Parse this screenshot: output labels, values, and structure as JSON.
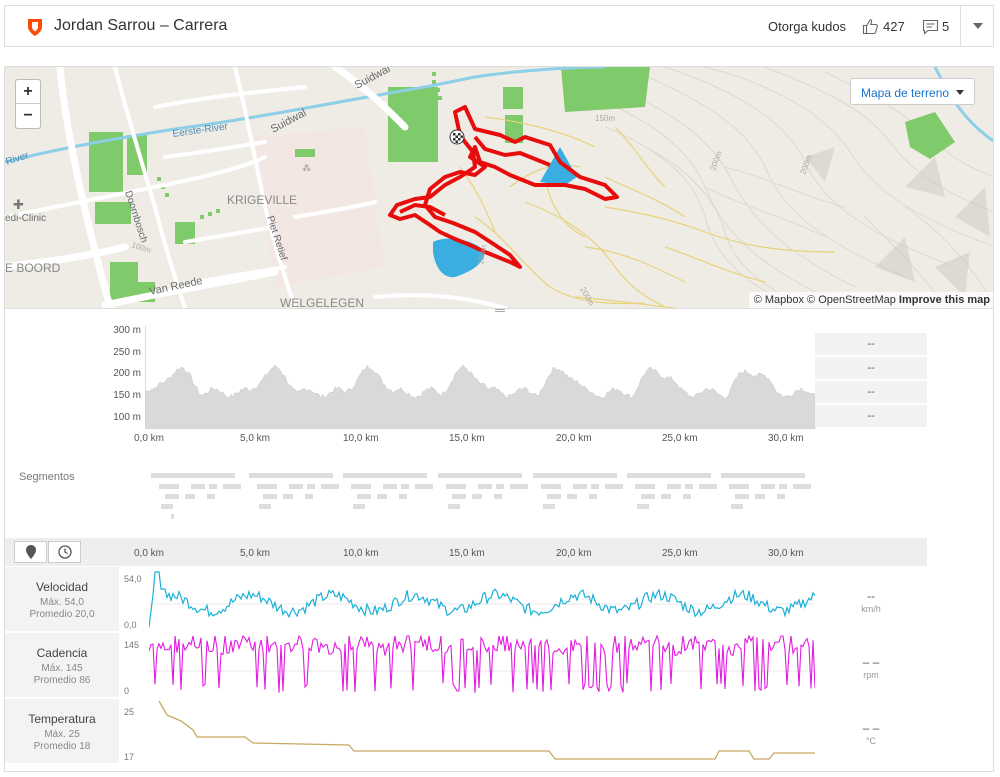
{
  "header": {
    "title": "Jordan Sarrou – Carrera",
    "kudos_label": "Otorga kudos",
    "kudos_count": "427",
    "comment_count": "5"
  },
  "map": {
    "map_type": "Mapa de terreno",
    "zoom_in": "+",
    "zoom_out": "−",
    "attribution": "© Mapbox © OpenStreetMap",
    "improve": "Improve this map",
    "labels": {
      "suidwal1": "Suidwal",
      "suidwal2": "Suidwal",
      "eerste": "Eerste-River",
      "river": "River",
      "krigeville": "KRIGEVILLE",
      "doornbosch": "Doornbosch",
      "pietretief": "Piet Retief",
      "vanreede": "Van Reede",
      "welgelegen": "WELGELEGEN",
      "clinic": "edi-Clinic",
      "boord": "E BOORD",
      "c150a": "150m",
      "c150b": "150m",
      "c200a": "200m",
      "c200b": "200m",
      "c200c": "200m",
      "c100": "100m"
    }
  },
  "elevation": {
    "y_ticks": [
      "300 m",
      "250 m",
      "200 m",
      "150 m",
      "100 m"
    ],
    "x_ticks": [
      "0,0 km",
      "5,0 km",
      "10,0 km",
      "15,0 km",
      "20,0 km",
      "25,0 km",
      "30,0 km"
    ],
    "stats": [
      "--",
      "--",
      "--",
      "--"
    ]
  },
  "segments": {
    "label": "Segmentos"
  },
  "streams": {
    "x_ticks": [
      "0,0 km",
      "5,0 km",
      "10,0 km",
      "15,0 km",
      "20,0 km",
      "25,0 km",
      "30,0 km"
    ],
    "velocidad": {
      "name": "Velocidad",
      "max": "Máx. 54,0",
      "avg": "Promedio 20,0",
      "top": "54,0",
      "bottom": "0,0",
      "dash": "--",
      "unit": "km/h",
      "color": "#1ab0d8"
    },
    "cadencia": {
      "name": "Cadencia",
      "max": "Máx. 145",
      "avg": "Promedio 86",
      "top": "145",
      "bottom": "0",
      "dash": "– –",
      "unit": "rpm",
      "color": "#e21ce0"
    },
    "temperatura": {
      "name": "Temperatura",
      "max": "Máx. 25",
      "avg": "Promedio 18",
      "top": "25",
      "bottom": "17",
      "dash": "– –",
      "unit": "°C",
      "color": "#c8a862"
    }
  }
}
